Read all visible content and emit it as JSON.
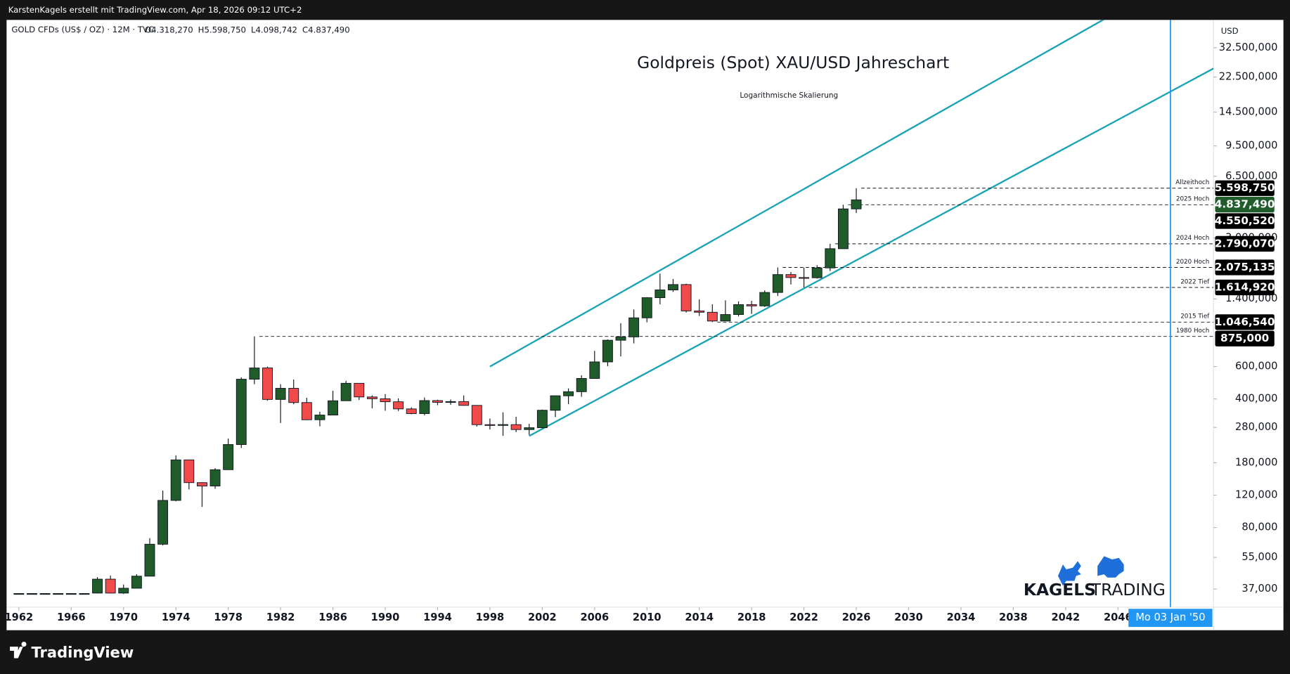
{
  "header": {
    "author_line": "KarstenKagels erstellt mit TradingView.com, Apr 18, 2026 09:12 UTC+2",
    "symbol": "GOLD CFDs (US$ / OZ) · 12M · TVC",
    "ohlc": [
      {
        "key": "O",
        "text": "4.318,270"
      },
      {
        "key": "H",
        "text": "5.598,750"
      },
      {
        "key": "L",
        "text": "4.098,742"
      },
      {
        "key": "C",
        "text": "4.837,490"
      }
    ],
    "currency": "USD",
    "brand": [
      "KAGELS",
      "TRADING"
    ],
    "footer": "TradingView"
  },
  "chart_data": {
    "type": "candlestick",
    "title": "Goldpreis (Spot) XAU/USD Jahreschart",
    "subtitle": "Logarithmische Skalierung",
    "log_scale": true,
    "grid": false,
    "up_color": "#1f5c2a",
    "down_color": "#f04a4a",
    "x": [
      1962,
      1963,
      1964,
      1965,
      1966,
      1967,
      1968,
      1969,
      1970,
      1971,
      1972,
      1973,
      1974,
      1975,
      1976,
      1977,
      1978,
      1979,
      1980,
      1981,
      1982,
      1983,
      1984,
      1985,
      1986,
      1987,
      1988,
      1989,
      1990,
      1991,
      1992,
      1993,
      1994,
      1995,
      1996,
      1997,
      1998,
      1999,
      2000,
      2001,
      2002,
      2003,
      2004,
      2005,
      2006,
      2007,
      2008,
      2009,
      2010,
      2011,
      2012,
      2013,
      2014,
      2015,
      2016,
      2017,
      2018,
      2019,
      2020,
      2021,
      2022,
      2023,
      2024,
      2025,
      2026
    ],
    "open": [
      35,
      35,
      35,
      35,
      35,
      35,
      35.2,
      41.9,
      35.2,
      37.4,
      43.5,
      64.9,
      112.3,
      186.5,
      140.3,
      134.5,
      165,
      226,
      512,
      589.5,
      397.5,
      456.9,
      382.4,
      308.3,
      327,
      391,
      486.5,
      410,
      401,
      386,
      353,
      333,
      391.8,
      383,
      387,
      369,
      290,
      287.8,
      290,
      272.65,
      279,
      347,
      416,
      438,
      517,
      636,
      834,
      869.75,
      1104,
      1421,
      1566,
      1675,
      1204,
      1184,
      1061,
      1151,
      1303,
      1282,
      1517,
      1898,
      1829,
      1824,
      2063,
      2624,
      4318.27
    ],
    "high": [
      35,
      35,
      35,
      35,
      35,
      35,
      43,
      43.8,
      39.2,
      44.6,
      70,
      127,
      197.5,
      186.5,
      141,
      168.2,
      243.7,
      524,
      875,
      599,
      481,
      510,
      406,
      341,
      443,
      502,
      487,
      418,
      425,
      403,
      360,
      407,
      396,
      397,
      418,
      369,
      313,
      338,
      320,
      293,
      350,
      417,
      456,
      538,
      730,
      842,
      1033,
      1226,
      1431,
      1920,
      1796,
      1694,
      1392,
      1308,
      1375,
      1357,
      1366,
      1557,
      2075.135,
      1959,
      2070,
      2135,
      2790.07,
      4550.52,
      5598.75
    ],
    "low": [
      35,
      35,
      35,
      35,
      35,
      35,
      35,
      35,
      34.8,
      37.3,
      43.5,
      63.9,
      111,
      128.8,
      103.5,
      130,
      165,
      216.5,
      481,
      391,
      296,
      374,
      307,
      284,
      326,
      390,
      395,
      356,
      345,
      344,
      330,
      326,
      370,
      372,
      367,
      283,
      273,
      252,
      264,
      255,
      277,
      319,
      375,
      411,
      516,
      603,
      681,
      802,
      1044,
      1308,
      1527,
      1180,
      1131,
      1046.54,
      1061,
      1124,
      1160,
      1266,
      1451,
      1677,
      1614.92,
      1804,
      1984,
      2614,
      4098.742
    ],
    "close": [
      35,
      35,
      35,
      35,
      35,
      35,
      41.9,
      35.2,
      37.4,
      43.5,
      64.9,
      112.3,
      186.5,
      140.3,
      134.5,
      164.95,
      226,
      512,
      589.5,
      397.5,
      456.9,
      382.4,
      308.3,
      327,
      390.9,
      486.5,
      410.2,
      401,
      386.2,
      353.2,
      333,
      391.8,
      383.3,
      387,
      369,
      290,
      287.8,
      290.2,
      272.65,
      278.95,
      347.2,
      416.25,
      438,
      517,
      636,
      834,
      869.75,
      1104,
      1421,
      1566,
      1675,
      1204,
      1184,
      1061,
      1151,
      1303,
      1282,
      1517,
      1898,
      1829,
      1824,
      2063,
      2624,
      4318.27,
      4837.49
    ],
    "xlim": [
      1961.06,
      2053.3
    ],
    "xticks": [
      1962,
      1966,
      1970,
      1974,
      1978,
      1982,
      1986,
      1990,
      1994,
      1998,
      2002,
      2006,
      2010,
      2014,
      2018,
      2022,
      2026,
      2030,
      2034,
      2038,
      2042,
      2046
    ],
    "ylim": [
      29.5,
      46000
    ],
    "yticks": [
      {
        "value": 37,
        "label": "37,000"
      },
      {
        "value": 55,
        "label": "55,000"
      },
      {
        "value": 80,
        "label": "80,000"
      },
      {
        "value": 120,
        "label": "120,000"
      },
      {
        "value": 180,
        "label": "180,000"
      },
      {
        "value": 280,
        "label": "280,000"
      },
      {
        "value": 400,
        "label": "400,000"
      },
      {
        "value": 600,
        "label": "600,000"
      },
      {
        "value": 1400,
        "label": "1.400,000"
      },
      {
        "value": 3000,
        "label": "3.000,000"
      },
      {
        "value": 6500,
        "label": "6.500,000"
      },
      {
        "value": 9500,
        "label": "9.500,000"
      },
      {
        "value": 14500,
        "label": "14.500,000"
      },
      {
        "value": 22500,
        "label": "22.500,000"
      },
      {
        "value": 32500,
        "label": "32.500,000"
      }
    ],
    "levels": [
      {
        "name": "Allzeithoch",
        "value": 5598.75,
        "label": "5.598,750",
        "from": 2026
      },
      {
        "name": "2025 Hoch",
        "value": 4550.52,
        "label": "4.550,520",
        "from": 2025
      },
      {
        "name": "2024 Hoch",
        "value": 2790.07,
        "label": "2.790,070",
        "from": 2024
      },
      {
        "name": "2020 Hoch",
        "value": 2075.135,
        "label": "2.075,135",
        "from": 2020
      },
      {
        "name": "2022 Tief",
        "value": 1614.92,
        "label": "1.614,920",
        "from": 2022
      },
      {
        "name": "2015 Tief",
        "value": 1046.54,
        "label": "1.046,540",
        "from": 2015
      },
      {
        "name": "1980 Hoch",
        "value": 875,
        "label": "875,000",
        "from": 1980
      }
    ],
    "last_price": {
      "value": 4837.49,
      "label": "4.837,490",
      "color": "#1f5c2a"
    },
    "channel_color": "#1aa3b5",
    "channels": [
      {
        "from": [
          1998,
          600
        ],
        "to": [
          2048,
          61600
        ]
      },
      {
        "from": [
          2001,
          251.6
        ],
        "to": [
          2053.3,
          25050
        ]
      }
    ],
    "cursor": {
      "x": 2050.01,
      "label": "Mo 03 Jan '50",
      "color": "#2196f3"
    }
  }
}
